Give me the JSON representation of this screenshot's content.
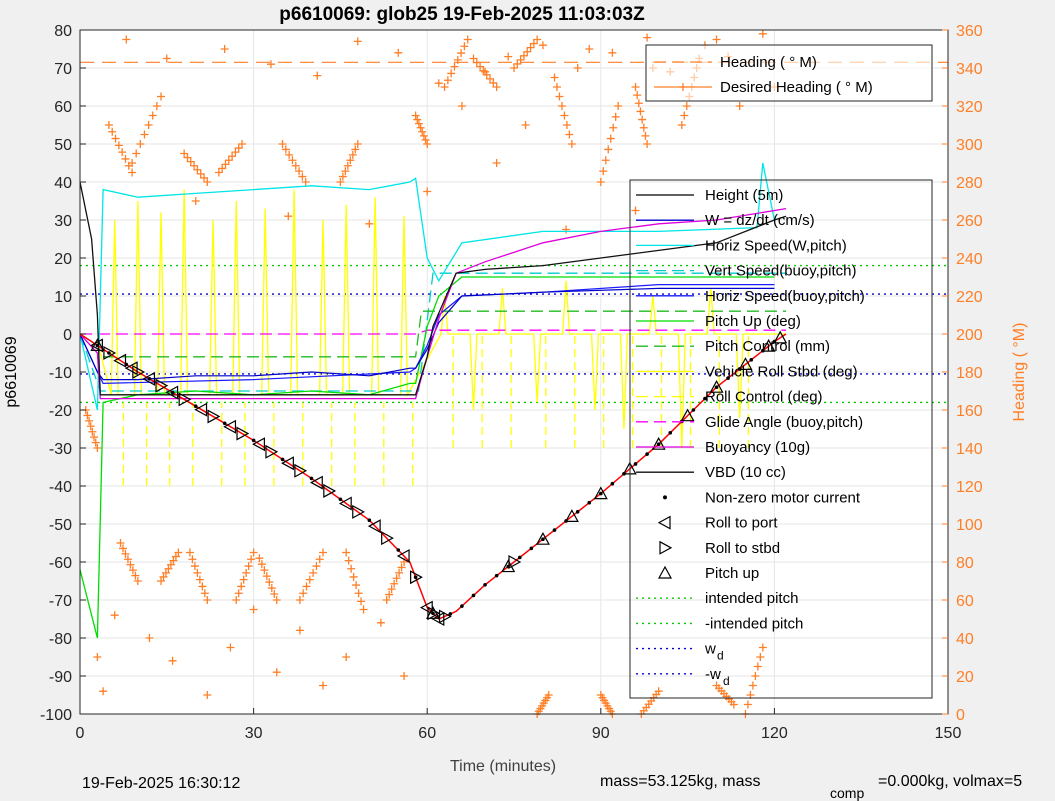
{
  "chart_data": {
    "type": "line",
    "title": "p6610069: glob25 19-Feb-2025 11:03:03Z",
    "xlabel": "Time (minutes)",
    "ylabel": "p6610069",
    "y2label": "Heading (  °M)",
    "xlim": [
      0,
      150
    ],
    "ylim": [
      -100,
      80
    ],
    "y2lim": [
      0,
      360
    ],
    "xticks": [
      "0",
      "30",
      "60",
      "90",
      "120",
      "150"
    ],
    "yticks": [
      "-100",
      "-90",
      "-80",
      "-70",
      "-60",
      "-50",
      "-40",
      "-30",
      "-20",
      "-10",
      "0",
      "10",
      "20",
      "30",
      "40",
      "50",
      "60",
      "70",
      "80"
    ],
    "y2ticks": [
      "0",
      "20",
      "40",
      "60",
      "80",
      "100",
      "120",
      "140",
      "160",
      "180",
      "200",
      "220",
      "240",
      "260",
      "280",
      "300",
      "320",
      "340",
      "360"
    ],
    "grid": true,
    "colors": {
      "depth": "#ff0000",
      "height": "#000000",
      "w": "#0000cc",
      "horiz_w": "#00e5e5",
      "vert_buoy": "#00cccc",
      "horiz_buoy": "#1a1aff",
      "pitch": "#00dd00",
      "pitch_control": "#22bb22",
      "roll": "#ffff00",
      "glide": "#ff00ff",
      "buoyancy": "#dd00dd",
      "vbd": "#111111",
      "heading": "#ff7f27",
      "intended_pitch": "#00cc00",
      "w_d": "#0000cc"
    },
    "legend_top": [
      {
        "label": "Heading (  ° M)",
        "style": "dash",
        "color": "#ff7f27"
      },
      {
        "label": "Desired Heading (    ° M)",
        "style": "plus",
        "color": "#ff7f27"
      }
    ],
    "legend_main": [
      {
        "label": "Height (5m)",
        "style": "line",
        "color": "#000000"
      },
      {
        "label": "W = dz/dt (cm/s)",
        "style": "line",
        "color": "#0000cc"
      },
      {
        "label": "Horiz Speed(W,pitch)",
        "style": "line",
        "color": "#00e5e5"
      },
      {
        "label": "Vert Speed(buoy,pitch)",
        "style": "dash",
        "color": "#00cccc"
      },
      {
        "label": "Horiz Speed(buoy,pitch)",
        "style": "line",
        "color": "#1a1aff"
      },
      {
        "label": "Pitch Up (deg)",
        "style": "line",
        "color": "#00dd00"
      },
      {
        "label": "Pitch Control (mm)",
        "style": "dash",
        "color": "#22bb22"
      },
      {
        "label": "Vehicle Roll Stbd (deg)",
        "style": "line",
        "color": "#ffff00"
      },
      {
        "label": "Roll Control (deg)",
        "style": "dash",
        "color": "#ffff00"
      },
      {
        "label": "Glide Angle (buoy,pitch)",
        "style": "dash",
        "color": "#ff00ff"
      },
      {
        "label": "Buoyancy (10g)",
        "style": "line",
        "color": "#dd00dd"
      },
      {
        "label": "VBD (10 cc)",
        "style": "line",
        "color": "#111111"
      },
      {
        "label": "Non-zero motor current",
        "style": "dot",
        "color": "#000000"
      },
      {
        "label": "Roll to port",
        "style": "tri-left",
        "color": "#000000"
      },
      {
        "label": "Roll to stbd",
        "style": "tri-right",
        "color": "#000000"
      },
      {
        "label": "Pitch up",
        "style": "tri-up",
        "color": "#000000"
      },
      {
        "label": "intended pitch",
        "style": "dot-line",
        "color": "#00cc00"
      },
      {
        "label": "-intended pitch",
        "style": "dot-line",
        "color": "#00cc00"
      },
      {
        "label": "w_d",
        "style": "dot-line",
        "color": "#0000cc"
      },
      {
        "label": "-w_d",
        "style": "dot-line",
        "color": "#0000cc"
      }
    ],
    "series": {
      "depth": {
        "x": [
          0,
          3,
          10,
          20,
          30,
          40,
          50,
          57,
          60,
          62,
          65,
          70,
          80,
          90,
          100,
          110,
          120,
          122
        ],
        "y": [
          0,
          -3,
          -10,
          -19,
          -28,
          -38,
          -49,
          -60,
          -72,
          -75,
          -73,
          -66,
          -54,
          -42,
          -29,
          -14,
          -2,
          0
        ]
      },
      "vbd": {
        "x": [
          0,
          2,
          3,
          3.5,
          57,
          58,
          60,
          61,
          65,
          70,
          80,
          90,
          100,
          110,
          120,
          122
        ],
        "y": [
          40,
          25,
          5,
          -16,
          -16,
          -16,
          -6,
          2,
          16,
          17,
          18,
          20,
          22,
          24,
          30,
          31
        ]
      },
      "buoyancy": {
        "x": [
          0,
          3,
          3.5,
          57,
          58,
          60,
          62,
          65,
          70,
          80,
          90,
          100,
          110,
          122
        ],
        "y": [
          0,
          -5,
          -17,
          -17,
          -17,
          -6,
          4,
          16,
          19,
          24,
          27,
          29,
          30,
          33
        ]
      },
      "w": {
        "x": [
          0,
          3,
          4,
          10,
          20,
          30,
          40,
          50,
          57,
          58,
          60,
          62,
          66,
          80,
          100,
          120
        ],
        "y": [
          0,
          -10,
          -12,
          -12,
          -11,
          -11,
          -10,
          -11,
          -9,
          -9,
          -4,
          3,
          10,
          11,
          12,
          12
        ]
      },
      "horiz_buoy": {
        "x": [
          0,
          3,
          4,
          30,
          57,
          58,
          60,
          62,
          66,
          80,
          100,
          120
        ],
        "y": [
          0,
          -10,
          -13,
          -12,
          -10,
          -9,
          -3,
          5,
          10,
          11,
          13,
          13
        ]
      },
      "horiz_w": {
        "x": [
          0,
          3,
          4,
          10,
          20,
          30,
          40,
          50,
          57,
          58,
          60,
          62,
          66,
          80,
          100,
          117,
          118,
          120
        ],
        "y": [
          0,
          -20,
          38,
          36,
          37,
          38,
          39,
          38,
          40,
          41,
          20,
          14,
          24,
          27,
          27,
          28,
          45,
          30
        ]
      },
      "vert_buoy": {
        "x": [
          0,
          3.5,
          57.5,
          58.5,
          61,
          122
        ],
        "y": [
          0,
          -15,
          -15,
          -15,
          16,
          16
        ]
      },
      "pitch": {
        "x": [
          0,
          3,
          4,
          10,
          20,
          30,
          40,
          50,
          57,
          58,
          60,
          62,
          66,
          80,
          100,
          120
        ],
        "y": [
          -62,
          -80,
          -18,
          -16,
          -15,
          -16,
          -15,
          -16,
          -13,
          -13,
          2,
          10,
          15,
          15,
          15,
          15
        ]
      },
      "pitch_control": {
        "x": [
          4,
          58,
          59,
          122
        ],
        "y": [
          -6,
          -6,
          6,
          6
        ]
      },
      "glide": {
        "x": [
          0,
          4,
          58,
          60,
          122
        ],
        "y": [
          0,
          0,
          0,
          1,
          1
        ]
      },
      "roll_spike_x": [
        6,
        10,
        14,
        18,
        23,
        27,
        32,
        37,
        42,
        46,
        51,
        56,
        63,
        68,
        73,
        79,
        84,
        89,
        94,
        99,
        104,
        109,
        114
      ],
      "roll_spike_y": [
        30,
        35,
        32,
        38,
        30,
        35,
        33,
        38,
        30,
        34,
        36,
        31,
        10,
        -20,
        12,
        -18,
        14,
        -20,
        -25,
        10,
        -30,
        12,
        -22
      ],
      "heading_clusters": [
        {
          "x0": 5,
          "x1": 9,
          "y0": 285,
          "y1": 310
        },
        {
          "x0": 9,
          "x1": 14,
          "y0": 290,
          "y1": 325
        },
        {
          "x0": 18,
          "x1": 22,
          "y0": 280,
          "y1": 295
        },
        {
          "x0": 24,
          "x1": 28,
          "y0": 285,
          "y1": 300
        },
        {
          "x0": 35,
          "x1": 39,
          "y0": 280,
          "y1": 300
        },
        {
          "x0": 45,
          "x1": 48,
          "y0": 280,
          "y1": 300
        },
        {
          "x0": 58,
          "x1": 60,
          "y0": 300,
          "y1": 315
        },
        {
          "x0": 63,
          "x1": 67,
          "y0": 330,
          "y1": 355
        },
        {
          "x0": 68,
          "x1": 72,
          "y0": 330,
          "y1": 345
        },
        {
          "x0": 75,
          "x1": 79,
          "y0": 340,
          "y1": 355
        },
        {
          "x0": 82,
          "x1": 85,
          "y0": 300,
          "y1": 335
        },
        {
          "x0": 90,
          "x1": 93,
          "y0": 280,
          "y1": 320
        },
        {
          "x0": 96,
          "x1": 98,
          "y0": 300,
          "y1": 330
        },
        {
          "x0": 104,
          "x1": 107,
          "y0": 310,
          "y1": 345
        },
        {
          "x0": 7,
          "x1": 10,
          "y0": 70,
          "y1": 90
        },
        {
          "x0": 14,
          "x1": 17,
          "y0": 70,
          "y1": 85
        },
        {
          "x0": 19,
          "x1": 22,
          "y0": 60,
          "y1": 85
        },
        {
          "x0": 27,
          "x1": 30,
          "y0": 60,
          "y1": 85
        },
        {
          "x0": 31,
          "x1": 34,
          "y0": 60,
          "y1": 82
        },
        {
          "x0": 38,
          "x1": 42,
          "y0": 60,
          "y1": 85
        },
        {
          "x0": 46,
          "x1": 49,
          "y0": 55,
          "y1": 85
        },
        {
          "x0": 53,
          "x1": 56,
          "y0": 60,
          "y1": 80
        },
        {
          "x0": 1,
          "x1": 3,
          "y0": 140,
          "y1": 160
        },
        {
          "x0": 79,
          "x1": 81,
          "y0": 0,
          "y1": 10
        },
        {
          "x0": 90,
          "x1": 92,
          "y0": 0,
          "y1": 10
        },
        {
          "x0": 97,
          "x1": 100,
          "y0": 0,
          "y1": 12
        },
        {
          "x0": 110,
          "x1": 113,
          "y0": 5,
          "y1": 15
        },
        {
          "x0": 115,
          "x1": 118,
          "y0": 0,
          "y1": 35
        }
      ],
      "heading_scatter_x": [
        3,
        6,
        12,
        16,
        22,
        26,
        30,
        34,
        38,
        42,
        46,
        52,
        56,
        62,
        70,
        74,
        80,
        86,
        92,
        98,
        102,
        108,
        112,
        118,
        8,
        15,
        25,
        33,
        41,
        48,
        55,
        66,
        77,
        88,
        99,
        110,
        4,
        20,
        36,
        50,
        60,
        72,
        84,
        96,
        114,
        120
      ],
      "heading_scatter_y": [
        30,
        52,
        40,
        28,
        10,
        35,
        55,
        22,
        44,
        15,
        30,
        48,
        20,
        332,
        338,
        346,
        352,
        340,
        348,
        356,
        338,
        352,
        346,
        358,
        355,
        345,
        350,
        342,
        336,
        354,
        348,
        320,
        310,
        350,
        340,
        355,
        12,
        270,
        262,
        258,
        275,
        290,
        255,
        265,
        320,
        330
      ]
    },
    "ref_lines": {
      "intended_pitch": 18,
      "neg_intended_pitch": -18,
      "w_d": 10.5,
      "neg_w_d": -10.5,
      "desired_heading": 343
    },
    "markers": {
      "roll_port_x": [
        3,
        7,
        9,
        12,
        16,
        21,
        26,
        31,
        36,
        41,
        46,
        51,
        56,
        60,
        62
      ],
      "roll_stbd_x": [
        5,
        10,
        14,
        18,
        23,
        28,
        33,
        38,
        43,
        48,
        53,
        58,
        61,
        63,
        75
      ],
      "pitch_up_x": [
        3,
        61,
        74,
        80,
        85,
        90,
        95,
        100,
        105,
        110,
        115,
        119,
        121
      ],
      "motor_dots_x": [
        3,
        5,
        8,
        12,
        16,
        20,
        25,
        30,
        35,
        40,
        45,
        50,
        55,
        58,
        61,
        64,
        66,
        68,
        70,
        72,
        74,
        76,
        78,
        80,
        82,
        84,
        86,
        88,
        90,
        92,
        94,
        96,
        98,
        100,
        102,
        104,
        106,
        108,
        110,
        112,
        114,
        116,
        118,
        120
      ]
    }
  },
  "footer": {
    "timestamp": "19-Feb-2025 16:30:12",
    "mass_text": "mass=53.125kg, mass",
    "comp_sub": "comp",
    "volmax_text": "=0.000kg, volmax=5"
  }
}
